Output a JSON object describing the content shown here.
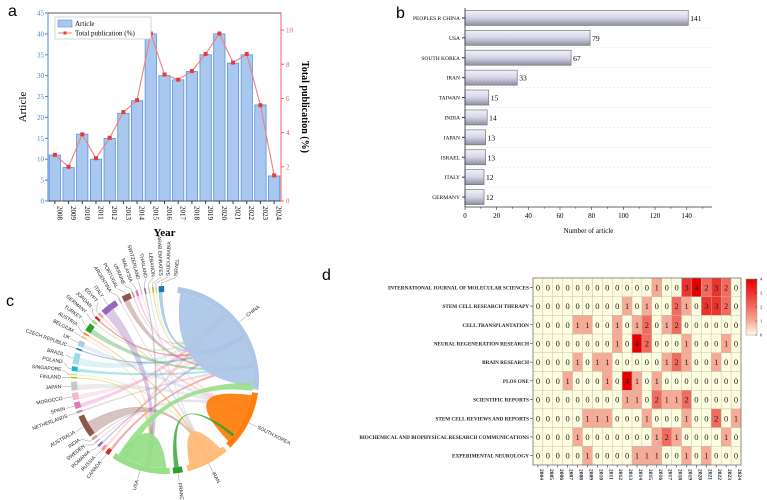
{
  "panel_letters": {
    "a": "a",
    "b": "b",
    "c": "c",
    "d": "d"
  },
  "colors": {
    "article_bar": "#a9c8ef",
    "article_bar_edge": "#5b8fd6",
    "total_line": "#f07f7f",
    "total_marker": "#e83a3a",
    "left_axis": "#4a86d8",
    "right_axis": "#f06060",
    "heat_low": "#fffde0",
    "heat_high": "#e60000"
  },
  "chart_data": [
    {
      "panel": "a",
      "type": "bar",
      "categories": [
        "2008",
        "2009",
        "2010",
        "2011",
        "2012",
        "2013",
        "2014",
        "2015",
        "2016",
        "2017",
        "2018",
        "2019",
        "2020",
        "2021",
        "2022",
        "2023",
        "2024"
      ],
      "series": [
        {
          "name": "Article",
          "type": "bar",
          "axis": "left",
          "values": [
            11,
            8,
            16,
            10,
            15,
            21,
            24,
            40,
            30,
            29,
            31,
            35,
            40,
            33,
            35,
            23,
            6
          ]
        },
        {
          "name": "Total publication (%)",
          "type": "line",
          "axis": "right",
          "values": [
            2.7,
            2.0,
            3.9,
            2.5,
            3.7,
            5.2,
            5.9,
            9.8,
            7.4,
            7.1,
            7.6,
            8.6,
            9.8,
            8.1,
            8.6,
            5.6,
            1.5
          ]
        }
      ],
      "xlabel": "Year",
      "ylabel": "Article",
      "y2label": "Total publication (%)",
      "ylim": [
        0,
        45
      ],
      "yticks": [
        0,
        5,
        10,
        15,
        20,
        25,
        30,
        35,
        40,
        45
      ],
      "y2lim": [
        0,
        11
      ],
      "y2ticks": [
        0,
        2,
        4,
        6,
        8,
        10
      ],
      "legend": "top-left",
      "grid": false
    },
    {
      "panel": "b",
      "type": "bar",
      "orientation": "horizontal",
      "categories": [
        "PEOPLES R CHINA",
        "USA",
        "SOUTH KOREA",
        "IRAN",
        "TAIWAN",
        "INDIA",
        "JAPAN",
        "ISRAEL",
        "ITALY",
        "GERMANY"
      ],
      "values": [
        141,
        79,
        67,
        33,
        15,
        14,
        13,
        13,
        12,
        12
      ],
      "xlabel": "Number of article",
      "xlim": [
        0,
        156
      ],
      "xticks": [
        0,
        20,
        40,
        60,
        80,
        100,
        120,
        140
      ],
      "data_labels": true,
      "grid": "horizontal dashed"
    },
    {
      "panel": "c",
      "type": "chord",
      "nodes": [
        {
          "label": "CHINA",
          "color": "#aec7e8"
        },
        {
          "label": "SOUTH KOREA",
          "color": "#ff7f0e"
        },
        {
          "label": "IRAN",
          "color": "#ffbb78"
        },
        {
          "label": "FRANCE",
          "color": "#2ca02c"
        },
        {
          "label": "USA",
          "color": "#98df8a"
        },
        {
          "label": "CANADA",
          "color": "#d62728"
        },
        {
          "label": "RUSSIA",
          "color": "#ff9896"
        },
        {
          "label": "ROMANIA",
          "color": "#9467bd"
        },
        {
          "label": "SWEDEN",
          "color": "#c5b0d5"
        },
        {
          "label": "INDIA",
          "color": "#c49c94"
        },
        {
          "label": "AUSTRALIA",
          "color": "#8c564b"
        },
        {
          "label": "NETHERLANDS",
          "color": "#c49c94"
        },
        {
          "label": "SPAIN",
          "color": "#e377c2"
        },
        {
          "label": "MOROCCO",
          "color": "#f7b6d2"
        },
        {
          "label": "JAPAN",
          "color": "#c7c7c7"
        },
        {
          "label": "FINLAND",
          "color": "#bcbd22"
        },
        {
          "label": "SINGAPORE",
          "color": "#dbdb8d"
        },
        {
          "label": "POLAND",
          "color": "#17becf"
        },
        {
          "label": "BRAZIL",
          "color": "#9edae5"
        },
        {
          "label": "CZECH REPUBLIC",
          "color": "#1f77b4"
        },
        {
          "label": "UK",
          "color": "#aec7e8"
        },
        {
          "label": "BELGIUM",
          "color": "#ffbb78"
        },
        {
          "label": "AUSTRIA",
          "color": "#ff7f0e"
        },
        {
          "label": "TURKEY",
          "color": "#2ca02c"
        },
        {
          "label": "GERMANY",
          "color": "#98df8a"
        },
        {
          "label": "JORDAN",
          "color": "#d62728"
        },
        {
          "label": "EGYPT",
          "color": "#ff9896"
        },
        {
          "label": "ITALY",
          "color": "#9467bd"
        },
        {
          "label": "ARGENTINA",
          "color": "#c5b0d5"
        },
        {
          "label": "PORTUGAL",
          "color": "#8c564b"
        },
        {
          "label": "UKRAINE",
          "color": "#c49c94"
        },
        {
          "label": "MALAYSIA",
          "color": "#e377c2"
        },
        {
          "label": "SWITZERLAND",
          "color": "#f7b6d2"
        },
        {
          "label": "THAILAND",
          "color": "#7f7f7f"
        },
        {
          "label": "LEBANON",
          "color": "#c7c7c7"
        },
        {
          "label": "ARAB EMIRATES",
          "color": "#bcbd22"
        },
        {
          "label": "SAUDI ARABIA",
          "color": "#dbdb8d"
        },
        {
          "label": "ISRAEL",
          "color": "#1f77b4"
        }
      ]
    },
    {
      "panel": "d",
      "type": "heatmap",
      "rows": [
        "INTERNATIONAL JOURNAL OF MOLECULAR SCIENCES",
        "STEM CELL RESEARCH THERAPY",
        "CELL TRANSPLANTATION",
        "NEURAL REGENERATION RESEARCH",
        "BRAIN RESEARCH",
        "PLOS ONE",
        "SCIENTIFIC REPORTS",
        "STEM CELL REVIEWS AND REPORTS",
        "BIOCHEMICAL AND BIOPHYSICAL RESEARCH COMMUNICATIONS",
        "EXPERIMENTAL NEUROLOGY"
      ],
      "columns": [
        "2004",
        "2005",
        "2006",
        "2007",
        "2008",
        "2009",
        "2010",
        "2011",
        "2012",
        "2013",
        "2014",
        "2015",
        "2016",
        "2017",
        "2018",
        "2019",
        "2020",
        "2021",
        "2022",
        "2023",
        "2024"
      ],
      "values": [
        [
          0,
          0,
          0,
          0,
          0,
          0,
          0,
          0,
          0,
          0,
          0,
          0,
          1,
          0,
          0,
          3,
          4,
          2,
          3,
          2,
          0
        ],
        [
          0,
          0,
          0,
          0,
          0,
          0,
          0,
          0,
          0,
          1,
          0,
          1,
          0,
          0,
          2,
          1,
          0,
          3,
          3,
          2,
          0
        ],
        [
          0,
          0,
          0,
          0,
          1,
          1,
          0,
          0,
          1,
          0,
          1,
          2,
          0,
          1,
          2,
          0,
          0,
          0,
          0,
          0,
          0
        ],
        [
          0,
          0,
          0,
          0,
          0,
          0,
          0,
          0,
          1,
          0,
          4,
          2,
          0,
          0,
          0,
          1,
          0,
          0,
          0,
          1,
          0
        ],
        [
          0,
          0,
          0,
          0,
          1,
          0,
          1,
          1,
          0,
          0,
          0,
          0,
          0,
          1,
          2,
          1,
          0,
          0,
          1,
          0,
          0
        ],
        [
          0,
          0,
          0,
          1,
          0,
          0,
          0,
          1,
          0,
          4,
          1,
          0,
          1,
          0,
          0,
          0,
          0,
          0,
          0,
          0,
          0
        ],
        [
          0,
          0,
          0,
          0,
          0,
          0,
          0,
          0,
          0,
          1,
          1,
          0,
          2,
          1,
          1,
          2,
          0,
          0,
          0,
          0,
          0
        ],
        [
          0,
          0,
          0,
          0,
          0,
          1,
          1,
          1,
          0,
          0,
          0,
          1,
          0,
          0,
          0,
          1,
          0,
          0,
          2,
          0,
          1
        ],
        [
          0,
          0,
          0,
          0,
          1,
          0,
          0,
          0,
          0,
          0,
          0,
          0,
          1,
          2,
          1,
          0,
          0,
          0,
          0,
          1,
          0
        ],
        [
          0,
          0,
          0,
          0,
          0,
          1,
          0,
          0,
          0,
          0,
          1,
          1,
          1,
          0,
          0,
          1,
          0,
          1,
          0,
          0,
          0
        ]
      ],
      "colorbar_range": [
        0,
        4
      ],
      "colorbar_ticks": [
        0,
        1,
        2,
        3,
        4
      ]
    }
  ]
}
